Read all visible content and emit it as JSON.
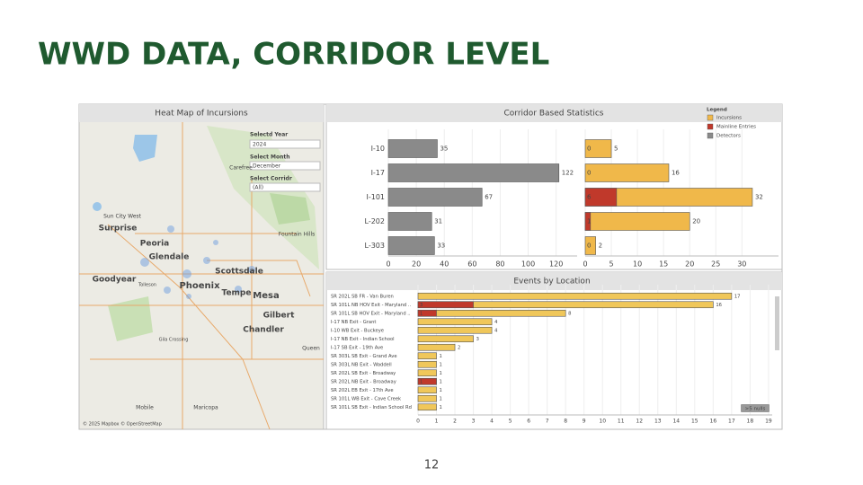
{
  "slide": {
    "title": "WWD DATA, CORRIDOR LEVEL",
    "page_number": "12"
  },
  "map": {
    "title": "Heat Map of Incursions",
    "filters": [
      {
        "label": "Selectd Year",
        "value": "2024"
      },
      {
        "label": "Select Month",
        "value": "December"
      },
      {
        "label": "Select Corridr",
        "value": "(All)"
      }
    ],
    "places": [
      "Sun City West",
      "Surprise",
      "Peoria",
      "Glendale",
      "Goodyear",
      "Tolleson",
      "Phoenix",
      "Scottsdale",
      "Tempe",
      "Mesa",
      "Gilbert",
      "Chandler",
      "Carefree",
      "Fountain Hills",
      "Gila Crossing",
      "Queen",
      "Mobile",
      "Maricopa"
    ],
    "attribution": "© 2025 Mapbox © OpenStreetMap"
  },
  "chart_data": [
    {
      "type": "hbar",
      "title": "Corridor Based Statistics",
      "categories": [
        "I-10",
        "I-17",
        "I-101",
        "L-202",
        "L-303"
      ],
      "series": [
        {
          "name": "Detectors",
          "color": "#8a8a8a",
          "values": [
            35,
            122,
            67,
            31,
            33
          ]
        }
      ],
      "xlim": [
        0,
        135
      ],
      "xticks": [
        0,
        20,
        40,
        60,
        80,
        100,
        120
      ],
      "grid": true
    },
    {
      "type": "hbar",
      "legend_title": "Legend",
      "series": [
        {
          "name": "Incursions",
          "color": "#f0b84a",
          "values": [
            5,
            16,
            32,
            20,
            2
          ]
        },
        {
          "name": "Mainline Entries",
          "color": "#c0392b",
          "values": [
            0,
            0,
            6,
            1,
            0
          ]
        }
      ],
      "xlim": [
        0,
        37
      ],
      "xticks": [
        0,
        5,
        10,
        15,
        20,
        25,
        30
      ],
      "grid": true
    },
    {
      "type": "hbar",
      "title": "Events by Location",
      "categories": [
        "SR 202L SB FR - Van Buren",
        "SR 101L NB HOV Exit - Maryland ..",
        "SR 101L SB HOV Exit - Maryland ..",
        "I-17 NB Exit - Grant",
        "I-10 WB Exit - Buckeye",
        "I-17 NB Exit - Indian School",
        "I-17 SB Exit - 19th Ave",
        "SR 303L SB Exit - Grand Ave",
        "SR 303L NB Exit - Waddell",
        "SR 202L SB Exit - Broadway",
        "SR 202L NB Exit - Broadway",
        "SR 202L EB Exit - 17th Ave",
        "SR 101L WB Exit - Cave Creek",
        "SR 101L SB Exit - Indian School Rd"
      ],
      "series": [
        {
          "color": "#f0c75a",
          "values": [
            17,
            16,
            8,
            4,
            4,
            3,
            2,
            1,
            1,
            1,
            1,
            1,
            1,
            1
          ]
        },
        {
          "color": "#c0392b",
          "values": [
            null,
            3,
            1,
            null,
            null,
            null,
            null,
            null,
            null,
            null,
            1,
            null,
            null,
            null
          ]
        }
      ],
      "xlim": [
        0,
        19.2
      ],
      "xticks": [
        0,
        1,
        2,
        3,
        4,
        5,
        6,
        7,
        8,
        9,
        10,
        11,
        12,
        13,
        14,
        15,
        16,
        17,
        18,
        19
      ],
      "grid": true,
      "nulls_indicator": ">5 nulls"
    }
  ]
}
